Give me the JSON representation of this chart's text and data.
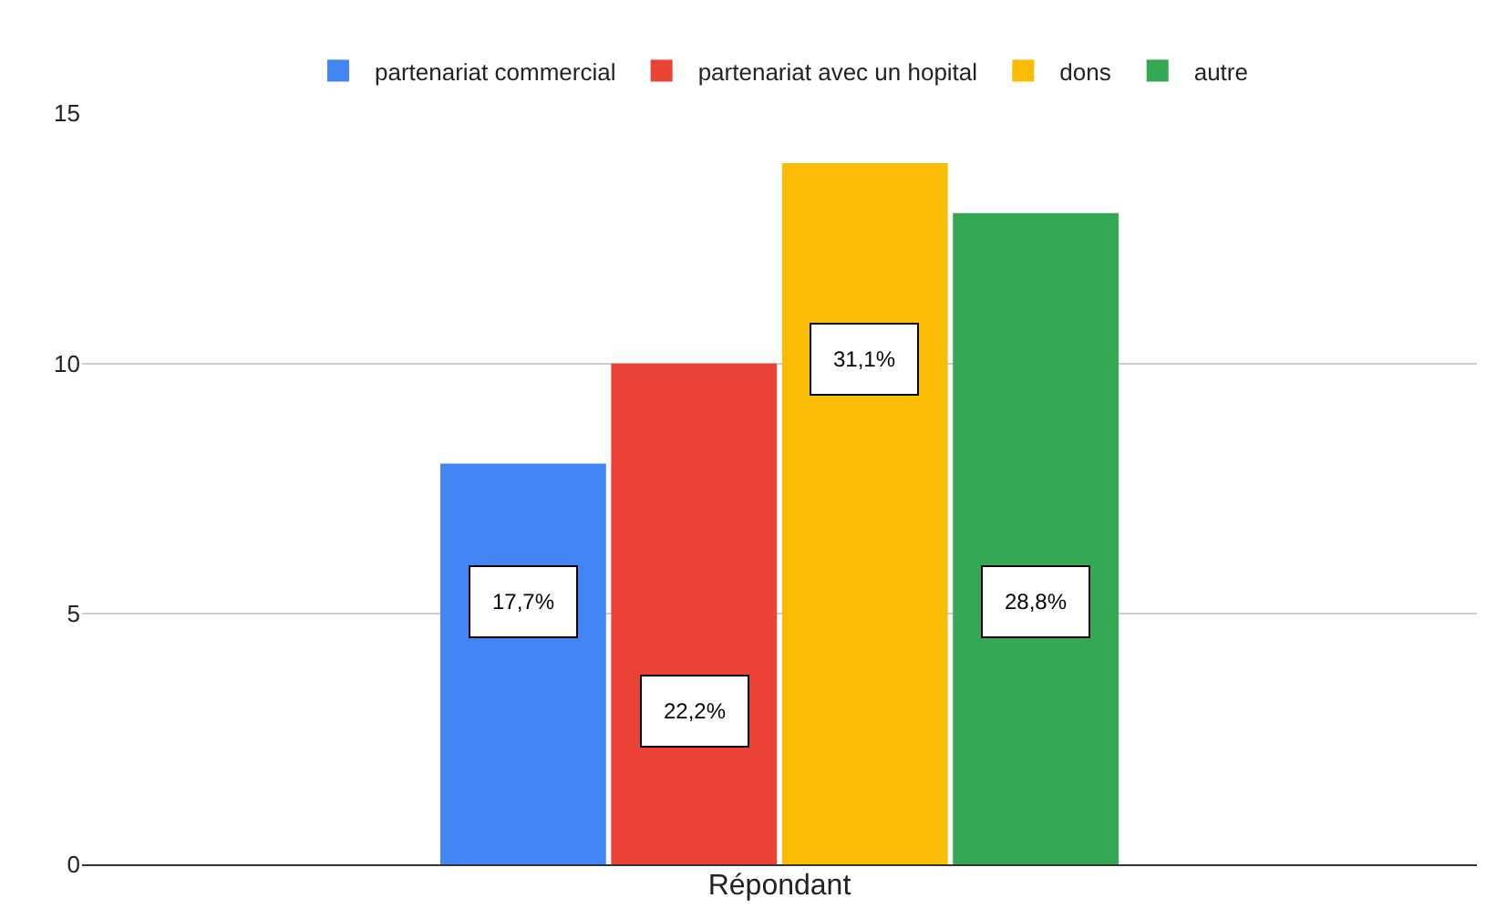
{
  "chart_data": {
    "type": "bar",
    "xlabel": "Répondant",
    "categories": [
      null
    ],
    "series": [
      {
        "name": "partenariat commercial",
        "color": "#4285f4",
        "values": [
          8
        ]
      },
      {
        "name": "partenariat avec un hopital",
        "color": "#ea4335",
        "values": [
          10
        ]
      },
      {
        "name": "dons",
        "color": "#fbbc04",
        "values": [
          14
        ]
      },
      {
        "name": "autre",
        "color": "#34a853",
        "values": [
          13
        ]
      }
    ],
    "annotations": [
      "17,7%",
      "22,2%",
      "31,1%",
      "28,8%"
    ],
    "ylim": [
      0,
      15
    ],
    "yticks": [
      0,
      5,
      10,
      15
    ],
    "grid": "y",
    "legend": "top"
  }
}
